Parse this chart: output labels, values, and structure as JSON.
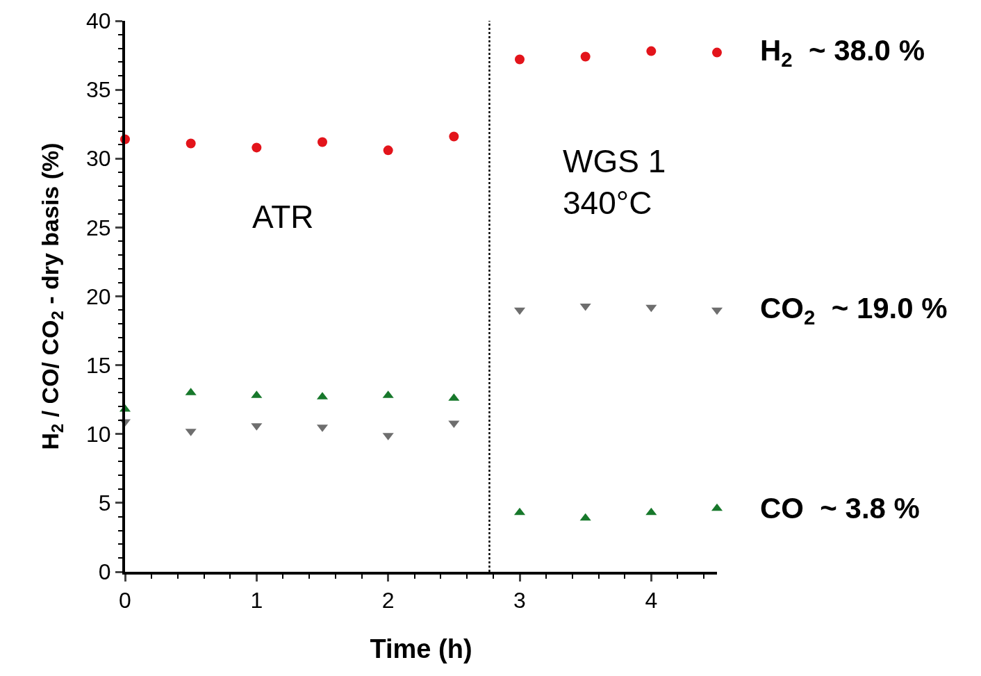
{
  "chart_data": {
    "type": "scatter",
    "xlabel": "Time (h)",
    "ylabel": "H$_{2}$ / CO/ CO$_{2}$ - dry basis (%)",
    "x": [
      0,
      0.5,
      1,
      1.5,
      2,
      2.5,
      3,
      3.5,
      4,
      4.5
    ],
    "series": [
      {
        "name": "H$_{2}$  ~ 38.0 %",
        "color": "#e3141b",
        "marker": "circle",
        "values": [
          31.4,
          31.1,
          30.8,
          31.2,
          30.6,
          31.6,
          37.2,
          37.4,
          37.8,
          37.7
        ]
      },
      {
        "name": "CO$_{2}$  ~ 19.0 %",
        "color": "#6e6e6e",
        "marker": "triangle-down",
        "values": [
          10.9,
          10.2,
          10.6,
          10.5,
          9.9,
          10.8,
          19.0,
          19.3,
          19.2,
          19.0
        ]
      },
      {
        "name": "CO  ~ 3.8 %",
        "color": "#17782b",
        "marker": "triangle",
        "values": [
          11.8,
          13.0,
          12.8,
          12.7,
          12.8,
          12.6,
          4.3,
          3.9,
          4.3,
          4.6
        ]
      }
    ],
    "xlim": [
      0,
      4.5
    ],
    "xticks": [
      0,
      1,
      2,
      3,
      4
    ],
    "ylim": [
      0,
      40
    ],
    "yticks": [
      0,
      5,
      10,
      15,
      20,
      25,
      30,
      35,
      40
    ],
    "ref_lines": [
      {
        "axis": "x",
        "value": 2.77,
        "line_style": "dotted",
        "color": "#000000"
      }
    ],
    "annotations": [
      "ATR",
      "WGS 1\n340°C"
    ],
    "grid": false,
    "legend": false
  }
}
